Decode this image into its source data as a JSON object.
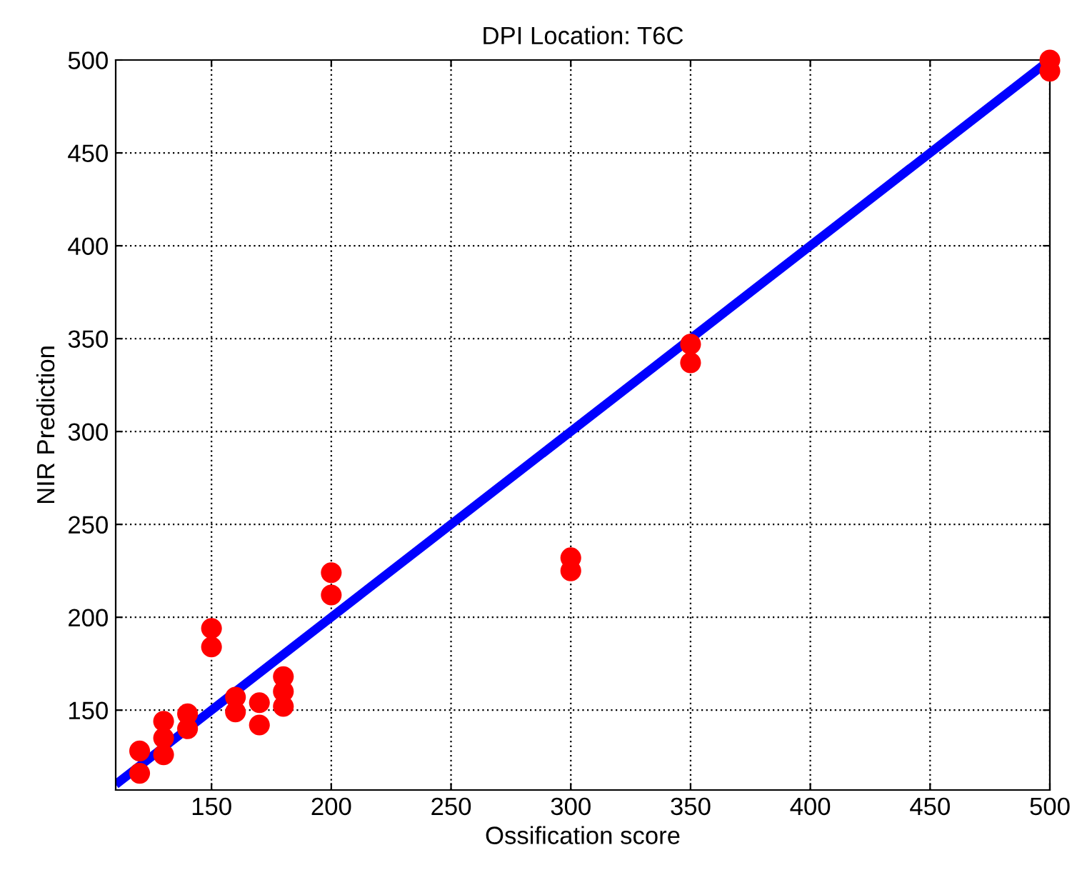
{
  "chart_data": {
    "type": "scatter",
    "title": "DPI Location: T6C",
    "xlabel": "Ossification score",
    "ylabel": "NIR Prediction",
    "xlim": [
      110,
      500
    ],
    "ylim": [
      107,
      500
    ],
    "xticks": [
      150,
      200,
      250,
      300,
      350,
      400,
      450,
      500
    ],
    "yticks": [
      150,
      200,
      250,
      300,
      350,
      400,
      450,
      500
    ],
    "grid": true,
    "series": [
      {
        "type": "line",
        "color": "#0000ff",
        "x": [
          110,
          500
        ],
        "values": [
          110,
          500
        ]
      },
      {
        "marker": "circle",
        "color": "#ff0000",
        "x": [
          120,
          120,
          130,
          130,
          130,
          140,
          140,
          150,
          150,
          160,
          160,
          170,
          170,
          180,
          180,
          180,
          200,
          200,
          300,
          300,
          350,
          350,
          500,
          500
        ],
        "values": [
          128,
          116,
          144,
          135,
          126,
          148,
          140,
          194,
          184,
          157,
          149,
          154,
          142,
          168,
          160,
          152,
          224,
          212,
          232,
          225,
          347,
          337,
          500,
          494
        ]
      }
    ]
  }
}
